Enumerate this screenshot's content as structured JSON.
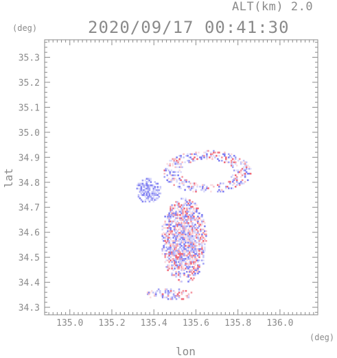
{
  "header": {
    "altitude_label": "ALT(km) 2.0",
    "datetime": "2020/09/17 00:41:30"
  },
  "axes": {
    "x_label": "lon",
    "y_label": "lat",
    "x_unit": "(deg)",
    "y_unit": "(deg)"
  },
  "chart_data": {
    "type": "heatmap",
    "title": "2020/09/17 00:41:30",
    "subtitle": "ALT(km) 2.0",
    "xlabel": "lon",
    "ylabel": "lat",
    "xlim": [
      134.88,
      136.18
    ],
    "ylim": [
      34.27,
      35.37
    ],
    "xticks": [
      "135.0",
      "135.2",
      "135.4",
      "135.6",
      "135.8",
      "136.0"
    ],
    "yticks": [
      "34.3",
      "34.4",
      "34.5",
      "34.6",
      "34.7",
      "34.8",
      "34.9",
      "35.0",
      "35.1",
      "35.2",
      "35.3"
    ],
    "grid": false,
    "colors": {
      "negative": "#7f7ff2",
      "positive": "#f06a7a",
      "frame": "#8a8a8a"
    },
    "regions": [
      {
        "name": "west-blob",
        "lon": [
          135.31,
          135.43
        ],
        "lat": [
          34.72,
          34.82
        ],
        "sign": -1
      },
      {
        "name": "north-ring",
        "lon": [
          135.44,
          135.86
        ],
        "lat": [
          34.76,
          34.93
        ],
        "sign": 0
      },
      {
        "name": "central-column",
        "lon": [
          135.43,
          135.65
        ],
        "lat": [
          34.4,
          34.74
        ],
        "sign": 0
      },
      {
        "name": "south-tail",
        "lon": [
          135.36,
          135.58
        ],
        "lat": [
          34.33,
          34.38
        ],
        "sign": 0
      }
    ]
  }
}
